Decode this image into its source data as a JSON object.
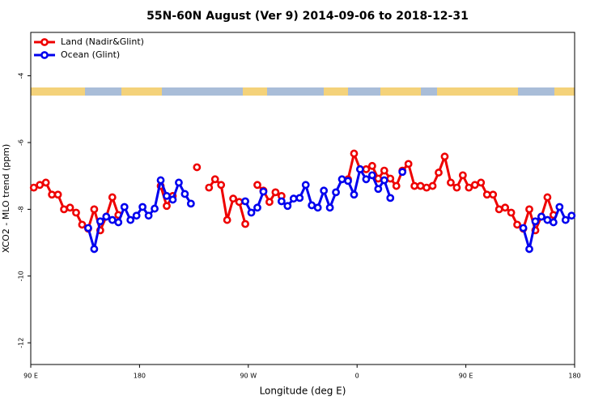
{
  "chart_data": {
    "type": "line",
    "title": "55N-60N August (Ver 9)   2014-09-06 to 2018-12-31",
    "x_label": "Longitude (deg E)",
    "y_label": "XCO2 - MLO trend (ppm)",
    "xlim": [
      90,
      540
    ],
    "ylim": [
      -12.65,
      -2.7
    ],
    "xticks": [
      {
        "value": 90,
        "label": "90 E"
      },
      {
        "value": 180,
        "label": "180"
      },
      {
        "value": 270,
        "label": "90 W"
      },
      {
        "value": 360,
        "label": "0"
      },
      {
        "value": 450,
        "label": "90 E"
      },
      {
        "value": 540,
        "label": "180"
      }
    ],
    "yticks": [
      -4,
      -6,
      -8,
      -10,
      -12
    ],
    "legend": "top-left",
    "x": [
      92.5,
      97.5,
      102.5,
      107.5,
      112.5,
      117.5,
      122.5,
      127.5,
      132.5,
      137.5,
      142.5,
      147.5,
      152.5,
      157.5,
      162.5,
      167.5,
      172.5,
      177.5,
      182.5,
      187.5,
      192.5,
      197.5,
      202.5,
      207.5,
      212.5,
      217.5,
      222.5,
      227.5,
      232.5,
      237.5,
      242.5,
      247.5,
      252.5,
      257.5,
      262.5,
      267.5,
      272.5,
      277.5,
      282.5,
      287.5,
      292.5,
      297.5,
      302.5,
      307.5,
      312.5,
      317.5,
      322.5,
      327.5,
      332.5,
      337.5,
      342.5,
      347.5,
      352.5,
      357.5,
      362.5,
      367.5,
      372.5,
      377.5,
      382.5,
      387.5,
      392.5,
      397.5,
      402.5,
      407.5,
      412.5,
      417.5,
      422.5,
      427.5,
      432.5,
      437.5,
      442.5,
      447.5,
      452.5,
      457.5,
      462.5,
      467.5,
      472.5,
      477.5,
      482.5,
      487.5,
      492.5,
      497.5,
      502.5,
      507.5,
      512.5,
      517.5,
      522.5,
      527.5,
      532.5,
      537.5
    ],
    "series": [
      {
        "name": "Land (Nadir&Glint)",
        "color": "#ee0000",
        "values": [
          -7.35,
          -7.27,
          -7.2,
          -7.56,
          -7.56,
          -8.0,
          -7.95,
          -8.1,
          -8.46,
          -8.58,
          -8.0,
          -8.63,
          -8.22,
          -7.64,
          -8.17,
          null,
          null,
          null,
          null,
          null,
          null,
          -7.3,
          -7.9,
          -7.6,
          null,
          null,
          null,
          -6.74,
          null,
          -7.35,
          -7.1,
          -7.27,
          -8.32,
          -7.68,
          -7.78,
          -8.44,
          null,
          -7.27,
          -7.44,
          -7.78,
          -7.49,
          -7.6,
          null,
          null,
          null,
          null,
          null,
          null,
          null,
          null,
          null,
          null,
          -7.1,
          -6.33,
          -6.8,
          -6.8,
          -6.7,
          -7.08,
          -6.84,
          -7.08,
          -7.3,
          -6.84,
          -6.64,
          -7.3,
          -7.3,
          -7.35,
          -7.3,
          -6.9,
          -6.42,
          -7.2,
          -7.35,
          -6.98,
          -7.35,
          -7.27,
          -7.2,
          -7.56,
          -7.56,
          -8.0,
          -7.95,
          -8.1,
          -8.46,
          -8.58,
          -8.0,
          -8.63,
          -8.22,
          -7.64,
          -8.17,
          null,
          null,
          null
        ]
      },
      {
        "name": "Ocean (Glint)",
        "color": "#0000ee",
        "values": [
          null,
          null,
          null,
          null,
          null,
          null,
          null,
          null,
          null,
          -8.56,
          -9.19,
          -8.36,
          -8.22,
          -8.32,
          -8.39,
          -7.93,
          -8.32,
          -8.19,
          -7.93,
          -8.19,
          -7.98,
          -7.13,
          -7.6,
          -7.71,
          -7.2,
          -7.54,
          -7.83,
          null,
          null,
          null,
          null,
          null,
          null,
          null,
          null,
          -7.76,
          -8.1,
          -7.95,
          -7.47,
          null,
          null,
          -7.76,
          -7.9,
          -7.68,
          -7.66,
          -7.27,
          -7.88,
          -7.95,
          -7.44,
          -7.95,
          -7.49,
          -7.1,
          -7.15,
          -7.56,
          -6.8,
          -7.1,
          -6.98,
          -7.39,
          -7.13,
          -7.66,
          null,
          -6.88,
          null,
          null,
          null,
          null,
          null,
          null,
          null,
          null,
          null,
          null,
          null,
          null,
          null,
          null,
          null,
          null,
          null,
          null,
          null,
          -8.56,
          -9.19,
          -8.36,
          -8.22,
          -8.32,
          -8.39,
          -7.93,
          -8.32,
          -8.19
        ]
      }
    ]
  }
}
